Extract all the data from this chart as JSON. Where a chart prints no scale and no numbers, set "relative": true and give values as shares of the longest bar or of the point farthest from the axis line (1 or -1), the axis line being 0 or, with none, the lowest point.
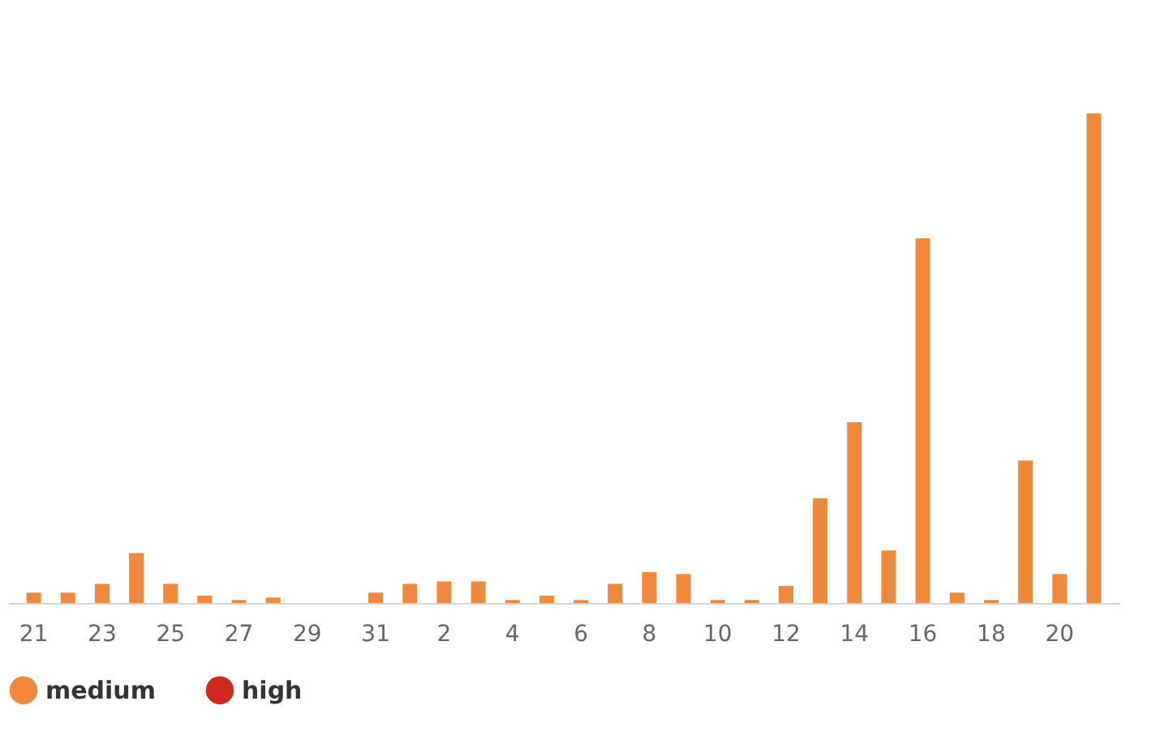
{
  "chart_data": {
    "type": "bar",
    "relative": true,
    "legend": "bottom",
    "grid": false,
    "categories": [
      "21",
      null,
      "23",
      null,
      "25",
      null,
      "27",
      null,
      "29",
      null,
      "31",
      null,
      "2",
      null,
      "4",
      null,
      "6",
      null,
      "8",
      null,
      "10",
      null,
      "12",
      null,
      "14",
      null,
      "16",
      null,
      "18",
      null,
      "20",
      null
    ],
    "series": [
      {
        "name": "medium",
        "color": "#f0883a",
        "values": [
          0.021,
          0.021,
          0.039,
          0.102,
          0.039,
          0.015,
          0.006,
          0.011,
          0,
          0,
          0.021,
          0.039,
          0.044,
          0.044,
          0.006,
          0.015,
          0.006,
          0.039,
          0.063,
          0.059,
          0.006,
          0.006,
          0.035,
          0.214,
          0.369,
          0.107,
          0.745,
          0.021,
          0.006,
          0.291,
          0.059,
          1
        ]
      },
      {
        "name": "high",
        "color": "#d0281f",
        "values": [
          null,
          null,
          null,
          null,
          null,
          null,
          null,
          null,
          null,
          null,
          null,
          null,
          null,
          null,
          null,
          null,
          null,
          null,
          null,
          null,
          null,
          null,
          null,
          null,
          null,
          null,
          null,
          null,
          null,
          null,
          null,
          null
        ]
      }
    ]
  }
}
